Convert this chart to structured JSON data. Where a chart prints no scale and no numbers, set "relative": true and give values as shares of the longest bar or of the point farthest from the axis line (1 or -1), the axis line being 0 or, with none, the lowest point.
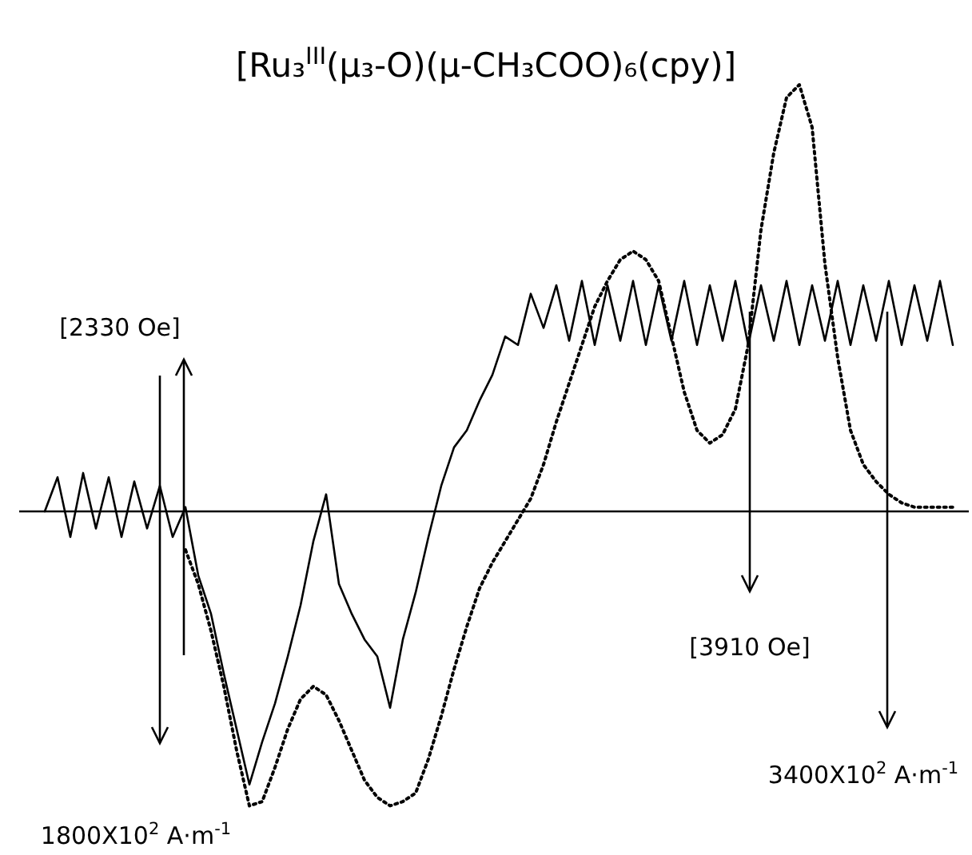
{
  "chart_data": {
    "type": "line",
    "relative": true,
    "title": "[Ru₃$^{III}$(μ₃-O)(μ-CH₃COO)₆(cpy)]",
    "categories": [
      null,
      null,
      null,
      null,
      null,
      null,
      null,
      null,
      null,
      null,
      null,
      null,
      null,
      null,
      null,
      null,
      null,
      null,
      null,
      null,
      null,
      null,
      null,
      null,
      null,
      null,
      null,
      null,
      null,
      null,
      null,
      null,
      null,
      null,
      null,
      null,
      null,
      null,
      null,
      null,
      null,
      null,
      null,
      null,
      null,
      null,
      null,
      null,
      null,
      null,
      null,
      null,
      null,
      null,
      null,
      null,
      null,
      null,
      null,
      null,
      null,
      null,
      null,
      null,
      null,
      null,
      null,
      null,
      null,
      null,
      null,
      null
    ],
    "series": [
      {
        "color": "#000000",
        "line_style": "solid",
        "values": [
          0,
          0.08,
          -0.06,
          0.09,
          -0.04,
          0.08,
          -0.06,
          0.07,
          -0.04,
          0.06,
          -0.06,
          0.01,
          -0.15,
          -0.24,
          -0.38,
          -0.51,
          -0.64,
          -0.54,
          -0.45,
          -0.34,
          -0.22,
          -0.07,
          0.04,
          -0.17,
          -0.24,
          -0.3,
          -0.34,
          -0.46,
          -0.3,
          -0.19,
          -0.06,
          0.06,
          0.15,
          0.19,
          0.26,
          0.32,
          0.41,
          0.39,
          0.51,
          0.43,
          0.53,
          0.4,
          0.54,
          0.39,
          0.53,
          0.4,
          0.54,
          0.39,
          0.53,
          0.4,
          0.54,
          0.39,
          0.53,
          0.4,
          0.54,
          0.39,
          0.53,
          0.4,
          0.54,
          0.39,
          0.53,
          0.4,
          0.54,
          0.39,
          0.53,
          0.4,
          0.54,
          0.39,
          0.53,
          0.4,
          0.54,
          0.39
        ]
      },
      {
        "color": "#000000",
        "line_style": "dotted",
        "values": [
          null,
          null,
          null,
          null,
          null,
          null,
          null,
          null,
          null,
          null,
          null,
          -0.09,
          -0.17,
          -0.28,
          -0.41,
          -0.56,
          -0.69,
          -0.68,
          -0.6,
          -0.51,
          -0.44,
          -0.41,
          -0.43,
          -0.49,
          -0.56,
          -0.63,
          -0.67,
          -0.69,
          -0.68,
          -0.66,
          -0.58,
          -0.48,
          -0.37,
          -0.27,
          -0.18,
          -0.12,
          -0.07,
          -0.02,
          0.03,
          0.11,
          0.21,
          0.3,
          0.39,
          0.48,
          0.54,
          0.59,
          0.61,
          0.59,
          0.54,
          0.41,
          0.28,
          0.19,
          0.16,
          0.18,
          0.24,
          0.39,
          0.66,
          0.84,
          0.97,
          1,
          0.9,
          0.58,
          0.36,
          0.19,
          0.11,
          0.07,
          0.04,
          0.02,
          0.01,
          0.01,
          0.01,
          0.01
        ]
      }
    ],
    "annotations": [
      "1800X10$^{2}$ A·m$^{-1}$",
      "[2330 Oe]",
      "[3910 Oe]",
      "3400X10$^{2}$ A·m$^{-1}$"
    ]
  }
}
